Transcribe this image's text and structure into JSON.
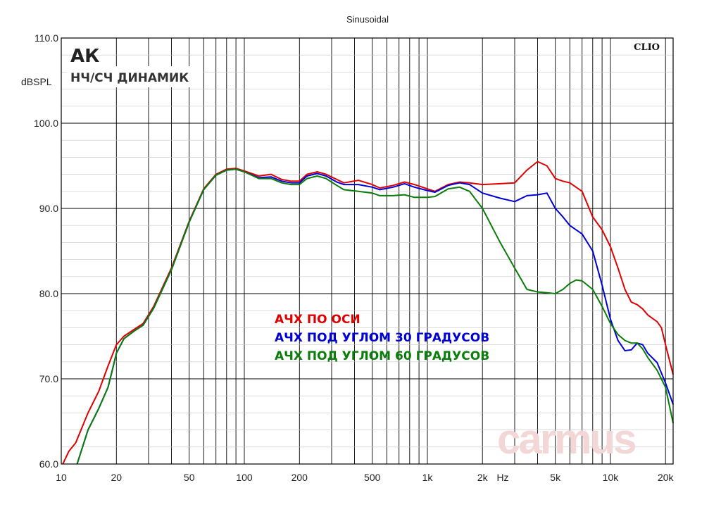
{
  "chart_data": {
    "type": "line",
    "title": "Sinusoidal",
    "heading": "АК",
    "subheading": "НЧ/СЧ ДИНАМИК",
    "brand": "CLIO",
    "watermark": "carmus",
    "xlabel": "Hz",
    "ylabel": "dBSPL",
    "xscale": "log",
    "xlim": [
      10,
      22000
    ],
    "ylim": [
      60,
      110
    ],
    "grid": true,
    "x_ticks": [
      {
        "v": 10,
        "label": "10"
      },
      {
        "v": 20,
        "label": "20"
      },
      {
        "v": 50,
        "label": "50"
      },
      {
        "v": 100,
        "label": "100"
      },
      {
        "v": 200,
        "label": "200"
      },
      {
        "v": 500,
        "label": "500"
      },
      {
        "v": 1000,
        "label": "1k"
      },
      {
        "v": 2000,
        "label": "2k"
      },
      {
        "v": 5000,
        "label": "5k"
      },
      {
        "v": 10000,
        "label": "10k"
      },
      {
        "v": 20000,
        "label": "20k"
      }
    ],
    "y_ticks": [
      {
        "v": 60,
        "label": "60.0"
      },
      {
        "v": 70,
        "label": "70.0"
      },
      {
        "v": 80,
        "label": "80.0"
      },
      {
        "v": 90,
        "label": "90.0"
      },
      {
        "v": 100,
        "label": "100.0"
      },
      {
        "v": 110,
        "label": "110.0"
      }
    ],
    "series": [
      {
        "name": "АЧХ ПО ОСИ",
        "color": "#e00000",
        "points": [
          [
            10.2,
            60
          ],
          [
            11,
            61.5
          ],
          [
            12,
            62.5
          ],
          [
            14,
            66
          ],
          [
            16,
            68.5
          ],
          [
            18,
            71.5
          ],
          [
            20,
            74
          ],
          [
            22,
            75
          ],
          [
            25,
            75.8
          ],
          [
            28,
            76.5
          ],
          [
            32,
            78.5
          ],
          [
            40,
            83
          ],
          [
            50,
            88.5
          ],
          [
            60,
            92.3
          ],
          [
            70,
            94
          ],
          [
            80,
            94.6
          ],
          [
            90,
            94.7
          ],
          [
            100,
            94.4
          ],
          [
            120,
            93.8
          ],
          [
            140,
            94
          ],
          [
            160,
            93.4
          ],
          [
            180,
            93.2
          ],
          [
            200,
            93.2
          ],
          [
            220,
            94
          ],
          [
            250,
            94.3
          ],
          [
            280,
            94
          ],
          [
            320,
            93.4
          ],
          [
            350,
            93
          ],
          [
            420,
            93.3
          ],
          [
            500,
            92.8
          ],
          [
            550,
            92.4
          ],
          [
            650,
            92.7
          ],
          [
            750,
            93.1
          ],
          [
            850,
            92.8
          ],
          [
            1000,
            92.3
          ],
          [
            1100,
            92
          ],
          [
            1300,
            92.8
          ],
          [
            1500,
            93.1
          ],
          [
            1700,
            93
          ],
          [
            2000,
            92.8
          ],
          [
            2500,
            92.9
          ],
          [
            3000,
            93
          ],
          [
            3500,
            94.5
          ],
          [
            4000,
            95.5
          ],
          [
            4500,
            95
          ],
          [
            5000,
            93.5
          ],
          [
            5500,
            93.2
          ],
          [
            6000,
            93
          ],
          [
            7000,
            92
          ],
          [
            8000,
            89
          ],
          [
            9000,
            87.5
          ],
          [
            10000,
            85.5
          ],
          [
            11000,
            83
          ],
          [
            12000,
            80.5
          ],
          [
            13000,
            79
          ],
          [
            14000,
            78.7
          ],
          [
            15000,
            78.2
          ],
          [
            16000,
            77.5
          ],
          [
            18000,
            76.7
          ],
          [
            19000,
            76
          ],
          [
            20000,
            74
          ],
          [
            22000,
            70.5
          ]
        ]
      },
      {
        "name": "АЧХ ПОД УГЛОМ 30 ГРАДУСОВ",
        "color": "#0000d8",
        "points": [
          [
            12.2,
            60
          ],
          [
            14,
            64
          ],
          [
            16,
            66.5
          ],
          [
            18,
            69
          ],
          [
            19,
            71
          ],
          [
            20,
            73
          ],
          [
            22,
            74.7
          ],
          [
            25,
            75.6
          ],
          [
            28,
            76.3
          ],
          [
            32,
            78.3
          ],
          [
            40,
            82.8
          ],
          [
            50,
            88.4
          ],
          [
            60,
            92.2
          ],
          [
            70,
            93.9
          ],
          [
            80,
            94.5
          ],
          [
            90,
            94.6
          ],
          [
            100,
            94.3
          ],
          [
            120,
            93.6
          ],
          [
            140,
            93.7
          ],
          [
            160,
            93.2
          ],
          [
            180,
            93
          ],
          [
            200,
            93
          ],
          [
            220,
            93.8
          ],
          [
            250,
            94.1
          ],
          [
            280,
            93.8
          ],
          [
            320,
            93.1
          ],
          [
            350,
            92.8
          ],
          [
            420,
            92.8
          ],
          [
            500,
            92.5
          ],
          [
            550,
            92.2
          ],
          [
            650,
            92.5
          ],
          [
            750,
            92.9
          ],
          [
            850,
            92.5
          ],
          [
            1000,
            92.1
          ],
          [
            1100,
            91.9
          ],
          [
            1300,
            92.7
          ],
          [
            1500,
            93
          ],
          [
            1700,
            92.8
          ],
          [
            2000,
            91.8
          ],
          [
            2500,
            91.2
          ],
          [
            3000,
            90.8
          ],
          [
            3500,
            91.5
          ],
          [
            4000,
            91.6
          ],
          [
            4500,
            91.8
          ],
          [
            5000,
            90
          ],
          [
            5500,
            89
          ],
          [
            6000,
            88
          ],
          [
            7000,
            87
          ],
          [
            8000,
            85
          ],
          [
            9000,
            81
          ],
          [
            10000,
            77
          ],
          [
            11000,
            74.5
          ],
          [
            12000,
            73.3
          ],
          [
            13000,
            73.4
          ],
          [
            14000,
            74.2
          ],
          [
            15000,
            74
          ],
          [
            16000,
            73
          ],
          [
            18000,
            71.9
          ],
          [
            20000,
            69.5
          ],
          [
            22000,
            67
          ]
        ]
      },
      {
        "name": "АЧХ ПОД УГЛОМ 60 ГРАДУСОВ",
        "color": "#0a7d0a",
        "points": [
          [
            12.2,
            60
          ],
          [
            14,
            64
          ],
          [
            16,
            66.5
          ],
          [
            18,
            69
          ],
          [
            19,
            71
          ],
          [
            20,
            73
          ],
          [
            22,
            74.7
          ],
          [
            25,
            75.6
          ],
          [
            28,
            76.3
          ],
          [
            32,
            78.3
          ],
          [
            40,
            82.8
          ],
          [
            50,
            88.4
          ],
          [
            60,
            92.2
          ],
          [
            70,
            93.9
          ],
          [
            80,
            94.5
          ],
          [
            90,
            94.6
          ],
          [
            100,
            94.3
          ],
          [
            120,
            93.5
          ],
          [
            140,
            93.5
          ],
          [
            160,
            93
          ],
          [
            180,
            92.8
          ],
          [
            200,
            92.8
          ],
          [
            220,
            93.5
          ],
          [
            250,
            93.8
          ],
          [
            280,
            93.5
          ],
          [
            320,
            92.7
          ],
          [
            350,
            92.2
          ],
          [
            420,
            92
          ],
          [
            500,
            91.8
          ],
          [
            550,
            91.5
          ],
          [
            650,
            91.5
          ],
          [
            750,
            91.6
          ],
          [
            850,
            91.3
          ],
          [
            1000,
            91.3
          ],
          [
            1100,
            91.4
          ],
          [
            1300,
            92.3
          ],
          [
            1500,
            92.5
          ],
          [
            1700,
            92
          ],
          [
            2000,
            90
          ],
          [
            2500,
            86
          ],
          [
            3000,
            83
          ],
          [
            3500,
            80.5
          ],
          [
            4000,
            80.2
          ],
          [
            4500,
            80.1
          ],
          [
            5000,
            80
          ],
          [
            5500,
            80.5
          ],
          [
            6000,
            81.2
          ],
          [
            6500,
            81.6
          ],
          [
            7000,
            81.5
          ],
          [
            8000,
            80.5
          ],
          [
            9000,
            78.5
          ],
          [
            10000,
            76.5
          ],
          [
            11000,
            75.2
          ],
          [
            12000,
            74.5
          ],
          [
            13000,
            74.2
          ],
          [
            14000,
            74.2
          ],
          [
            15000,
            73.5
          ],
          [
            16000,
            72.5
          ],
          [
            18000,
            71
          ],
          [
            20000,
            69
          ],
          [
            22000,
            64.8
          ]
        ]
      }
    ]
  }
}
